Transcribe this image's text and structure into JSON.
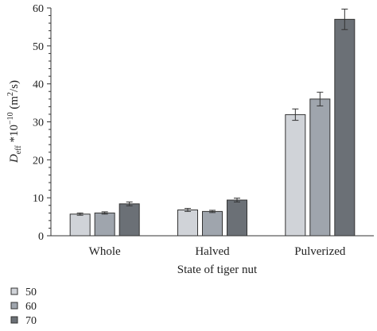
{
  "chart_data": {
    "type": "bar",
    "xlabel": "State of tiger nut",
    "ylabel": {
      "base": "D",
      "subscript": "eff",
      "expr": " *10",
      "superscript": "−10",
      "unit_open": " (m",
      "unit_sup": "2",
      "unit_close": "/s)"
    },
    "ylim": [
      0,
      60
    ],
    "yticks": [
      0,
      10,
      20,
      30,
      40,
      50,
      60
    ],
    "categories": [
      "Whole",
      "Halved",
      "Pulverized"
    ],
    "series": [
      {
        "name": "50",
        "color": "#d0d3d8",
        "values": [
          5.7,
          6.8,
          31.9
        ],
        "errors": [
          0.3,
          0.4,
          1.5
        ]
      },
      {
        "name": "60",
        "color": "#9fa5ad",
        "values": [
          6.0,
          6.4,
          36.0
        ],
        "errors": [
          0.3,
          0.3,
          1.8
        ]
      },
      {
        "name": "70",
        "color": "#6b7076",
        "values": [
          8.4,
          9.4,
          57.0
        ],
        "errors": [
          0.5,
          0.5,
          2.7
        ]
      }
    ],
    "legend_position": "bottom-left",
    "grid": false
  }
}
